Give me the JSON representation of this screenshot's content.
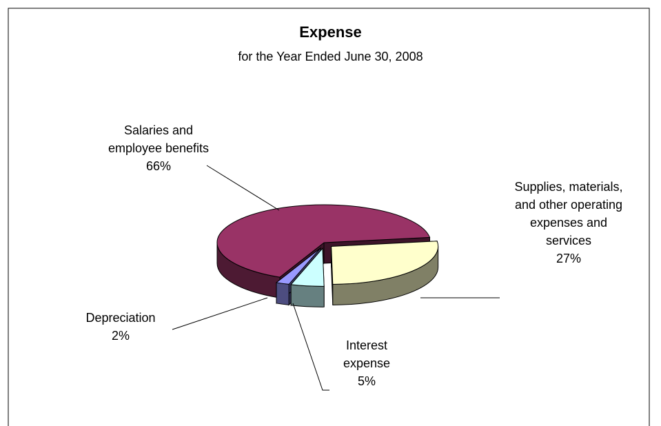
{
  "chart_data": {
    "type": "pie3d",
    "title": "Expense",
    "subtitle": "for the Year Ended June 30, 2008",
    "categories": [
      "Supplies, materials, and other operating expenses and services",
      "Interest expense",
      "Depreciation",
      "Salaries and employee benefits"
    ],
    "values": [
      27,
      5,
      2,
      66
    ],
    "value_labels": [
      "27%",
      "5%",
      "2%",
      "66%"
    ],
    "colors": [
      "#ffffcc",
      "#ccffff",
      "#9999ff",
      "#993366"
    ]
  }
}
